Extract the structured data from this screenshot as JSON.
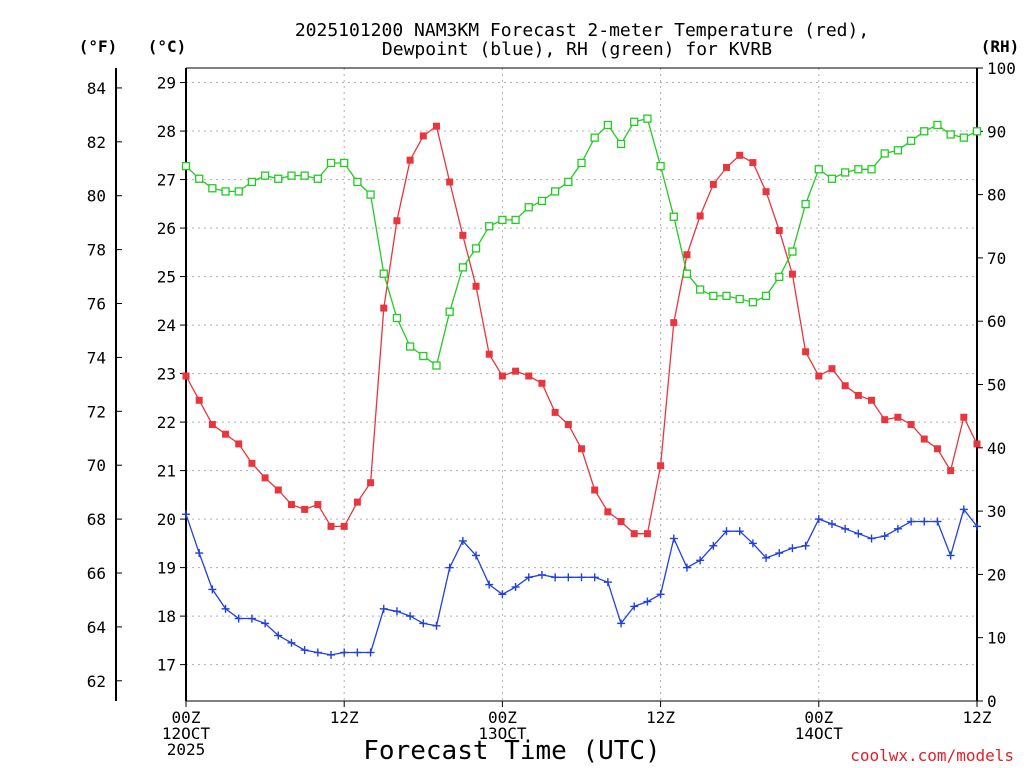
{
  "chart_data": {
    "type": "line",
    "title_lines": [
      "2025101200 NAM3KM Forecast 2-meter Temperature (red),",
      "Dewpoint (blue), RH (green) for KVRB"
    ],
    "xlabel": "Forecast Time (UTC)",
    "credit": "coolwx.com/models",
    "unit_labels": {
      "fahrenheit": "(°F)",
      "celsius": "(°C)",
      "rh": "(RH)"
    },
    "x_range_hours": [
      0,
      60
    ],
    "x_ticks": [
      {
        "hour": 0,
        "lines": [
          "00Z",
          "12OCT",
          "2025"
        ]
      },
      {
        "hour": 12,
        "lines": [
          "12Z"
        ]
      },
      {
        "hour": 24,
        "lines": [
          "00Z",
          "13OCT"
        ]
      },
      {
        "hour": 36,
        "lines": [
          "12Z"
        ]
      },
      {
        "hour": 48,
        "lines": [
          "00Z",
          "14OCT"
        ]
      },
      {
        "hour": 60,
        "lines": [
          "12Z"
        ]
      }
    ],
    "y_celsius_range": [
      16.25,
      29.3
    ],
    "y_celsius_ticks": [
      17,
      18,
      19,
      20,
      21,
      22,
      23,
      24,
      25,
      26,
      27,
      28,
      29
    ],
    "y_fahrenheit_ticks": [
      62,
      64,
      66,
      68,
      70,
      72,
      74,
      76,
      78,
      80,
      82,
      84
    ],
    "y_rh_range": [
      0,
      100
    ],
    "y_rh_ticks": [
      0,
      10,
      20,
      30,
      40,
      50,
      60,
      70,
      80,
      90,
      100
    ],
    "colors": {
      "temperature": "#e8353e",
      "dewpoint": "#2040e0",
      "rh": "#22cc22",
      "credit": "#e0202a"
    },
    "hours": [
      0,
      1,
      2,
      3,
      4,
      5,
      6,
      7,
      8,
      9,
      10,
      11,
      12,
      13,
      14,
      15,
      16,
      17,
      18,
      19,
      20,
      21,
      22,
      23,
      24,
      25,
      26,
      27,
      28,
      29,
      30,
      31,
      32,
      33,
      34,
      35,
      36,
      37,
      38,
      39,
      40,
      41,
      42,
      43,
      44,
      45,
      46,
      47,
      48,
      49,
      50,
      51,
      52,
      53,
      54,
      55,
      56,
      57,
      58,
      59,
      60
    ],
    "series": [
      {
        "name": "Temperature",
        "unit": "°C",
        "marker": "filled-square",
        "values": [
          22.95,
          22.45,
          21.95,
          21.75,
          21.55,
          21.15,
          20.85,
          20.6,
          20.3,
          20.2,
          20.3,
          19.85,
          19.85,
          20.35,
          20.75,
          24.35,
          26.15,
          27.4,
          27.9,
          28.1,
          26.95,
          25.85,
          24.8,
          23.4,
          22.95,
          23.05,
          22.95,
          22.8,
          22.2,
          21.95,
          21.45,
          20.6,
          20.15,
          19.95,
          19.7,
          19.7,
          21.1,
          24.05,
          25.45,
          26.25,
          26.9,
          27.25,
          27.5,
          27.35,
          26.75,
          25.95,
          25.05,
          23.45,
          22.95,
          23.1,
          22.75,
          22.55,
          22.45,
          22.05,
          22.1,
          21.95,
          21.65,
          21.45,
          21.0,
          22.1,
          21.55
        ]
      },
      {
        "name": "Dewpoint",
        "unit": "°C",
        "marker": "plus",
        "values": [
          20.1,
          19.3,
          18.55,
          18.15,
          17.95,
          17.95,
          17.85,
          17.6,
          17.45,
          17.3,
          17.25,
          17.2,
          17.25,
          17.25,
          17.25,
          18.15,
          18.1,
          18.0,
          17.85,
          17.8,
          19.0,
          19.55,
          19.25,
          18.65,
          18.45,
          18.6,
          18.8,
          18.85,
          18.8,
          18.8,
          18.8,
          18.8,
          18.7,
          17.85,
          18.2,
          18.3,
          18.45,
          19.6,
          19.0,
          19.15,
          19.45,
          19.75,
          19.75,
          19.5,
          19.2,
          19.3,
          19.4,
          19.45,
          20.0,
          19.9,
          19.8,
          19.7,
          19.6,
          19.65,
          19.8,
          19.95,
          19.95,
          19.95,
          19.25,
          20.2,
          19.85
        ]
      },
      {
        "name": "RH",
        "unit": "%",
        "marker": "open-square",
        "values": [
          84.5,
          82.5,
          81,
          80.5,
          80.5,
          82,
          83,
          82.5,
          83,
          83,
          82.5,
          85,
          85,
          82,
          80,
          67.5,
          60.5,
          56,
          54.5,
          53,
          61.5,
          68.5,
          71.5,
          75,
          76,
          76,
          78,
          79,
          80.5,
          82,
          85,
          89,
          91,
          88,
          91.5,
          92,
          84.5,
          76.5,
          67.5,
          65,
          64,
          64,
          63.5,
          63,
          64,
          67,
          71,
          78.5,
          84,
          82.5,
          83.5,
          84,
          84,
          86.5,
          87,
          88.5,
          90,
          91,
          89.5,
          89,
          90
        ]
      }
    ]
  }
}
